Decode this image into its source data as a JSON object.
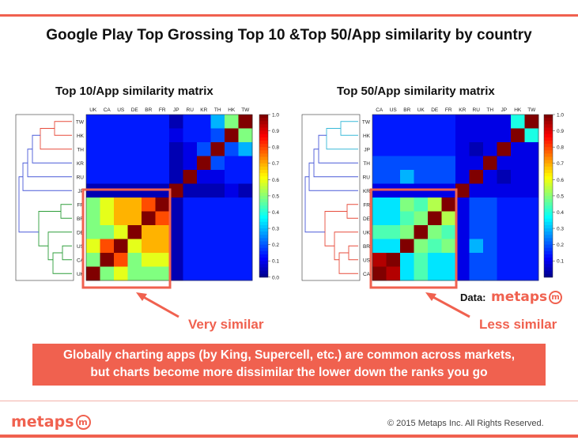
{
  "title": "Google Play Top Grossing Top 10 &Top 50/App similarity by country",
  "chart_data": [
    {
      "type": "heatmap",
      "title": "Top 10/App similarity matrix",
      "x_labels": [
        "UK",
        "CA",
        "US",
        "DE",
        "BR",
        "FR",
        "JP",
        "RU",
        "KR",
        "TH",
        "HK",
        "TW"
      ],
      "y_labels": [
        "TW",
        "HK",
        "TH",
        "KR",
        "RU",
        "JP",
        "FR",
        "BR",
        "DE",
        "US",
        "CA",
        "UK"
      ],
      "values": [
        [
          0.15,
          0.15,
          0.15,
          0.15,
          0.15,
          0.15,
          0.05,
          0.15,
          0.15,
          0.3,
          0.5,
          1.0
        ],
        [
          0.15,
          0.15,
          0.15,
          0.15,
          0.15,
          0.15,
          0.1,
          0.15,
          0.15,
          0.2,
          1.0,
          0.5
        ],
        [
          0.15,
          0.15,
          0.15,
          0.15,
          0.15,
          0.15,
          0.05,
          0.1,
          0.2,
          1.0,
          0.2,
          0.3
        ],
        [
          0.15,
          0.15,
          0.15,
          0.15,
          0.15,
          0.15,
          0.05,
          0.1,
          1.0,
          0.2,
          0.15,
          0.15
        ],
        [
          0.15,
          0.15,
          0.15,
          0.15,
          0.15,
          0.15,
          0.05,
          1.0,
          0.1,
          0.1,
          0.15,
          0.15
        ],
        [
          0.05,
          0.05,
          0.05,
          0.05,
          0.05,
          0.05,
          1.0,
          0.05,
          0.05,
          0.05,
          0.1,
          0.05
        ],
        [
          0.5,
          0.6,
          0.7,
          0.7,
          0.8,
          1.0,
          0.05,
          0.15,
          0.15,
          0.15,
          0.15,
          0.15
        ],
        [
          0.5,
          0.6,
          0.7,
          0.7,
          1.0,
          0.8,
          0.05,
          0.15,
          0.15,
          0.15,
          0.15,
          0.15
        ],
        [
          0.5,
          0.5,
          0.6,
          1.0,
          0.7,
          0.7,
          0.05,
          0.15,
          0.15,
          0.15,
          0.15,
          0.15
        ],
        [
          0.6,
          0.8,
          1.0,
          0.6,
          0.7,
          0.7,
          0.05,
          0.15,
          0.15,
          0.15,
          0.15,
          0.15
        ],
        [
          0.5,
          1.0,
          0.8,
          0.5,
          0.6,
          0.6,
          0.05,
          0.15,
          0.15,
          0.15,
          0.15,
          0.15
        ],
        [
          1.0,
          0.5,
          0.6,
          0.5,
          0.5,
          0.5,
          0.05,
          0.15,
          0.15,
          0.15,
          0.15,
          0.15
        ]
      ],
      "colorbar_ticks": [
        "1.0",
        "0.9",
        "0.8",
        "0.7",
        "0.6",
        "0.5",
        "0.4",
        "0.3",
        "0.2",
        "0.1",
        "0.0"
      ],
      "vrange": [
        0,
        1
      ],
      "colormap": "jet",
      "annotation": "Very similar"
    },
    {
      "type": "heatmap",
      "title": "Top 50/App similarity matrix",
      "x_labels": [
        "CA",
        "US",
        "BR",
        "UK",
        "DE",
        "FR",
        "KR",
        "RU",
        "TH",
        "JP",
        "HK",
        "TW"
      ],
      "y_labels": [
        "TW",
        "HK",
        "JP",
        "TH",
        "RU",
        "KR",
        "FR",
        "DE",
        "UK",
        "BR",
        "US",
        "CA"
      ],
      "values": [
        [
          0.15,
          0.15,
          0.15,
          0.15,
          0.15,
          0.15,
          0.1,
          0.1,
          0.1,
          0.1,
          0.4,
          1.0
        ],
        [
          0.15,
          0.15,
          0.15,
          0.15,
          0.15,
          0.15,
          0.1,
          0.1,
          0.1,
          0.1,
          1.0,
          0.4
        ],
        [
          0.15,
          0.15,
          0.15,
          0.15,
          0.15,
          0.15,
          0.1,
          0.05,
          0.1,
          1.0,
          0.1,
          0.1
        ],
        [
          0.2,
          0.2,
          0.2,
          0.2,
          0.2,
          0.2,
          0.1,
          0.1,
          1.0,
          0.1,
          0.1,
          0.1
        ],
        [
          0.2,
          0.2,
          0.3,
          0.2,
          0.2,
          0.2,
          0.1,
          1.0,
          0.1,
          0.05,
          0.1,
          0.1
        ],
        [
          0.1,
          0.1,
          0.1,
          0.1,
          0.1,
          0.1,
          1.0,
          0.1,
          0.1,
          0.1,
          0.1,
          0.1
        ],
        [
          0.35,
          0.35,
          0.5,
          0.45,
          0.55,
          1.0,
          0.1,
          0.2,
          0.2,
          0.15,
          0.15,
          0.15
        ],
        [
          0.35,
          0.35,
          0.45,
          0.5,
          1.0,
          0.55,
          0.1,
          0.2,
          0.2,
          0.15,
          0.15,
          0.15
        ],
        [
          0.45,
          0.45,
          0.5,
          1.0,
          0.5,
          0.45,
          0.1,
          0.2,
          0.2,
          0.15,
          0.15,
          0.15
        ],
        [
          0.35,
          0.35,
          1.0,
          0.5,
          0.45,
          0.5,
          0.1,
          0.3,
          0.2,
          0.15,
          0.15,
          0.15
        ],
        [
          0.95,
          1.0,
          0.35,
          0.45,
          0.35,
          0.35,
          0.1,
          0.2,
          0.2,
          0.15,
          0.15,
          0.15
        ],
        [
          1.0,
          0.95,
          0.35,
          0.45,
          0.35,
          0.35,
          0.1,
          0.2,
          0.2,
          0.15,
          0.15,
          0.15
        ]
      ],
      "colorbar_ticks": [
        "1.0",
        "0.9",
        "0.8",
        "0.7",
        "0.6",
        "0.5",
        "0.4",
        "0.3",
        "0.2",
        "0.1"
      ],
      "vrange": [
        0,
        1
      ],
      "colormap": "jet",
      "annotation": "Less similar"
    }
  ],
  "callout": {
    "line1": "Globally charting apps (by King, Supercell, etc.) are common across markets,",
    "line2": "but charts become more dissimilar the lower down the ranks you go"
  },
  "data_source": {
    "label": "Data:",
    "brand": "metaps",
    "brand_mark": "m"
  },
  "footer": {
    "brand": "metaps",
    "brand_mark": "m",
    "copyright": "© 2015 Metaps Inc. All Rights Reserved."
  },
  "colors": {
    "accent": "#f0614f",
    "text": "#111111"
  }
}
